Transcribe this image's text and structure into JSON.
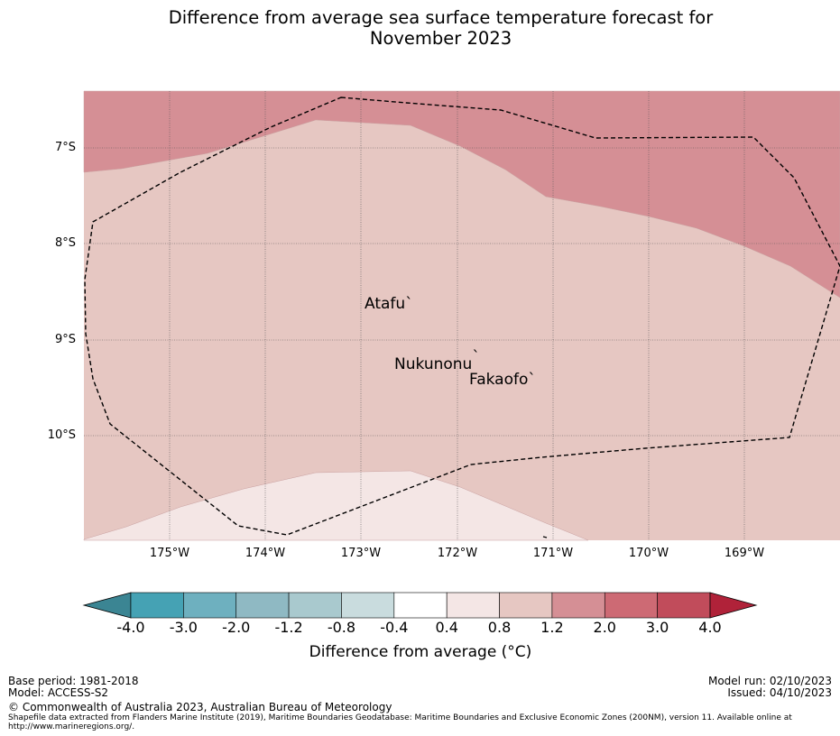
{
  "title": {
    "line1": "Difference from average sea surface temperature forecast for",
    "line2": "November 2023"
  },
  "map": {
    "lat_labels": [
      "7°S",
      "8°S",
      "9°S",
      "10°S"
    ],
    "lon_labels": [
      "175°W",
      "174°W",
      "173°W",
      "172°W",
      "171°W",
      "170°W",
      "169°W"
    ],
    "lat_values": [
      -7,
      -8,
      -9,
      -10
    ],
    "lon_values": [
      -175,
      -174,
      -173,
      -172,
      -171,
      -170,
      -169
    ],
    "places": [
      {
        "name": "Atafu",
        "symbol": "`"
      },
      {
        "name": "Nukunonu",
        "symbol": "`"
      },
      {
        "name": "Fakaofo",
        "symbol": "`"
      }
    ],
    "colors": {
      "band_1_2_to_2_0": "#d58f95",
      "band_0_8_to_1_2": "#e6c7c2",
      "band_0_4_to_0_8": "#f4e6e5",
      "eez_line": "#000000",
      "grid": "#555555"
    }
  },
  "colorbar": {
    "tick_labels": [
      "-4.0",
      "-3.0",
      "-2.0",
      "-1.2",
      "-0.8",
      "-0.4",
      "0.4",
      "0.8",
      "1.2",
      "2.0",
      "3.0",
      "4.0"
    ],
    "colors": [
      "#3b8593",
      "#45a2b4",
      "#6eb0bf",
      "#8fb9c3",
      "#a9c9ce",
      "#c9dcde",
      "#ffffff",
      "#f4e6e5",
      "#e6c7c2",
      "#d58f95",
      "#cd6a74",
      "#c14c5b",
      "#b02239"
    ],
    "label": "Difference from average (°C)"
  },
  "footer": {
    "base_period": "Base period: 1981-2018",
    "model": "Model: ACCESS-S2",
    "model_run": "Model run: 02/10/2023",
    "issued": "Issued: 04/10/2023",
    "copyright": "© Commonwealth of Australia 2023, Australian Bureau of Meteorology",
    "shapefile_line1": "Shapefile data extracted from Flanders Marine Institute (2019), Maritime Boundaries Geodatabase: Maritime Boundaries and Exclusive Economic Zones (200NM), version 11. Available online at",
    "shapefile_line2": "http://www.marineregions.org/."
  }
}
